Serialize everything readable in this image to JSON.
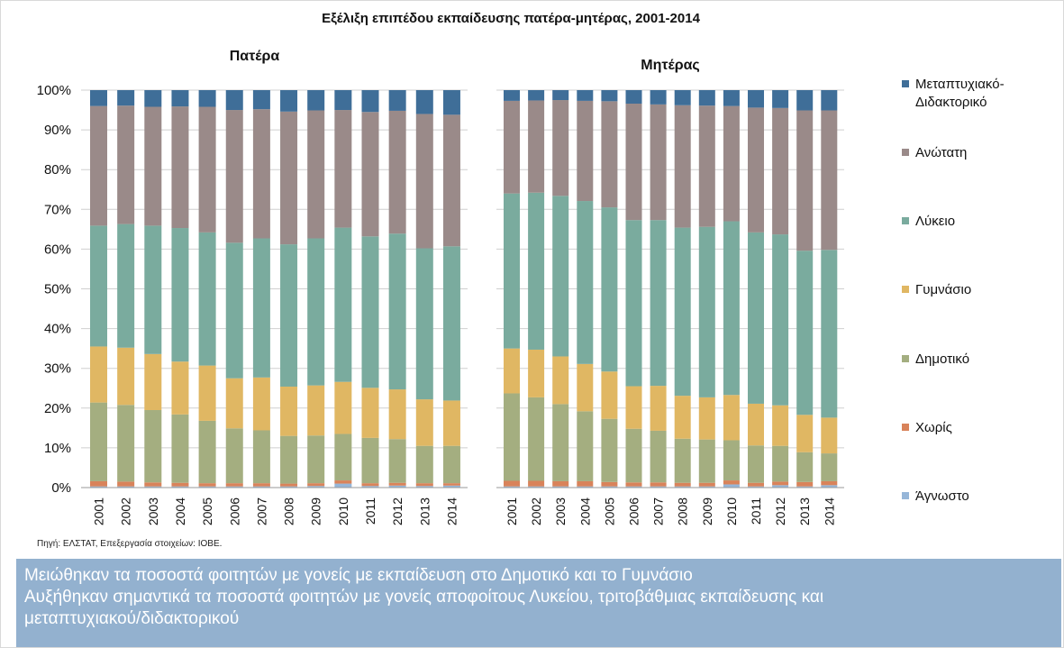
{
  "chart_data": {
    "type": "bar",
    "stacked": true,
    "title": "Εξέλιξη επιπέδου εκπαίδευσης πατέρα-μητέρας, 2001-2014",
    "categories": [
      "2001",
      "2002",
      "2003",
      "2004",
      "2005",
      "2006",
      "2007",
      "2008",
      "2009",
      "2010",
      "2011",
      "2012",
      "2013",
      "2014"
    ],
    "y_ticks": [
      "0%",
      "10%",
      "20%",
      "30%",
      "40%",
      "50%",
      "60%",
      "70%",
      "80%",
      "90%",
      "100%"
    ],
    "ylim": [
      0,
      100
    ],
    "grid": true,
    "legend_position": "right",
    "legend": [
      {
        "key": "postgrad",
        "label": "Μεταπτυχιακό-Διδακτορικό",
        "color": "#3f6e98"
      },
      {
        "key": "tertiary",
        "label": "Ανώτατη",
        "color": "#9a8a89"
      },
      {
        "key": "lyceum",
        "label": "Λύκειο",
        "color": "#7aab9e"
      },
      {
        "key": "gymnasium",
        "label": "Γυμνάσιο",
        "color": "#e0b763"
      },
      {
        "key": "primary",
        "label": "Δημοτικό",
        "color": "#a4ae80"
      },
      {
        "key": "none",
        "label": "Χωρίς",
        "color": "#d9835a"
      },
      {
        "key": "unknown",
        "label": "Άγνωστο",
        "color": "#96b6d8"
      }
    ],
    "panels": [
      {
        "title": "Πατέρα",
        "series": {
          "unknown": [
            0.3,
            0.3,
            0.3,
            0.3,
            0.3,
            0.3,
            0.3,
            0.3,
            0.4,
            1.0,
            0.4,
            0.5,
            0.4,
            0.5
          ],
          "none": [
            1.3,
            1.2,
            1.0,
            0.9,
            0.8,
            0.8,
            0.8,
            0.7,
            0.7,
            0.8,
            0.7,
            0.7,
            0.7,
            0.6
          ],
          "primary": [
            19.8,
            19.3,
            18.2,
            17.2,
            15.7,
            13.8,
            13.3,
            12.0,
            12.0,
            11.7,
            11.4,
            11.0,
            9.4,
            9.4
          ],
          "gymnasium": [
            14.1,
            14.4,
            14.1,
            13.3,
            13.9,
            12.6,
            13.3,
            12.4,
            12.6,
            13.1,
            12.6,
            12.5,
            11.7,
            11.4
          ],
          "lyceum": [
            30.4,
            31.1,
            32.3,
            33.6,
            33.5,
            34.1,
            35.0,
            35.8,
            37.0,
            38.8,
            38.1,
            39.2,
            38.0,
            38.8
          ],
          "tertiary": [
            30.1,
            29.8,
            29.9,
            30.6,
            31.6,
            33.4,
            32.5,
            33.4,
            32.2,
            29.6,
            31.3,
            30.9,
            33.8,
            33.1
          ],
          "postgrad": [
            4.0,
            3.9,
            4.2,
            4.1,
            4.2,
            5.0,
            4.8,
            5.4,
            5.1,
            5.0,
            5.5,
            5.2,
            6.0,
            6.2
          ]
        }
      },
      {
        "title": "Μητέρας",
        "series": {
          "unknown": [
            0.3,
            0.3,
            0.3,
            0.3,
            0.3,
            0.3,
            0.3,
            0.3,
            0.3,
            0.8,
            0.3,
            0.6,
            0.3,
            0.6
          ],
          "none": [
            1.4,
            1.4,
            1.3,
            1.3,
            1.1,
            1.0,
            1.0,
            0.9,
            0.9,
            1.0,
            0.9,
            0.9,
            1.1,
            1.0
          ],
          "primary": [
            22.0,
            21.0,
            19.4,
            17.6,
            15.9,
            13.5,
            13.0,
            11.1,
            10.9,
            10.1,
            9.4,
            9.0,
            7.5,
            7.0
          ],
          "gymnasium": [
            11.3,
            12.0,
            12.0,
            11.9,
            11.9,
            10.7,
            11.3,
            10.8,
            10.6,
            11.4,
            10.5,
            10.2,
            9.4,
            9.0
          ],
          "lyceum": [
            39.0,
            39.5,
            40.4,
            41.0,
            41.3,
            41.8,
            41.7,
            42.3,
            42.9,
            43.7,
            43.1,
            43.0,
            41.3,
            42.2
          ],
          "tertiary": [
            23.3,
            23.2,
            24.1,
            25.2,
            26.7,
            29.3,
            29.1,
            30.8,
            30.5,
            29.0,
            31.4,
            31.8,
            35.3,
            35.1
          ],
          "postgrad": [
            2.7,
            2.6,
            2.5,
            2.7,
            2.8,
            3.4,
            3.6,
            3.8,
            3.9,
            4.0,
            4.4,
            4.5,
            5.1,
            5.1
          ]
        }
      }
    ]
  },
  "source_note": "Πηγή: ΕΛΣΤΑΤ, Επεξεργασία στοιχείων: ΙΟΒΕ.",
  "summary": {
    "line1": "Μειώθηκαν τα ποσοστά φοιτητών με γονείς με εκπαίδευση στο Δημοτικό και το Γυμνάσιο",
    "line2": "Αυξήθηκαν σημαντικά τα ποσοστά φοιτητών με γονείς αποφοίτους Λυκείου, τριτοβάθμιας εκπαίδευσης και",
    "line3": "μεταπτυχιακού/διδακτορικού"
  }
}
